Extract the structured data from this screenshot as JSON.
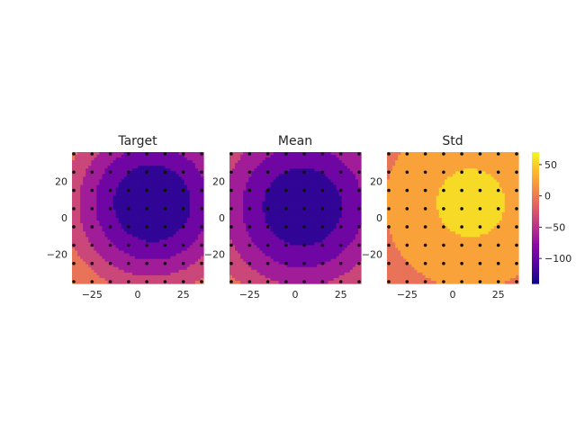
{
  "chart_data": {
    "type": "heatmap",
    "colormap": "plasma",
    "colorbar": {
      "vmin": -140,
      "vmax": 70,
      "ticks": [
        50,
        0,
        -50,
        -100
      ]
    },
    "x_ticks": [
      -25,
      0,
      25
    ],
    "y_ticks": [
      20,
      0,
      -20
    ],
    "grid": false,
    "panels": [
      {
        "title": "Target",
        "kind": "bowl",
        "center": [
          8,
          8
        ],
        "min": -140,
        "edge": 70,
        "spread": 38
      },
      {
        "title": "Mean",
        "kind": "bowl",
        "center": [
          4,
          6
        ],
        "min": -135,
        "edge": 70,
        "spread": 42
      },
      {
        "title": "Std",
        "kind": "bump",
        "center": [
          10,
          8
        ],
        "peak": 55,
        "base": 5,
        "spread": 22
      }
    ],
    "sample_x": [
      -35,
      -25,
      -15,
      -5,
      5,
      15,
      25,
      35
    ],
    "sample_y": [
      35,
      25,
      15,
      5,
      -5,
      -15,
      -25,
      -35
    ]
  }
}
